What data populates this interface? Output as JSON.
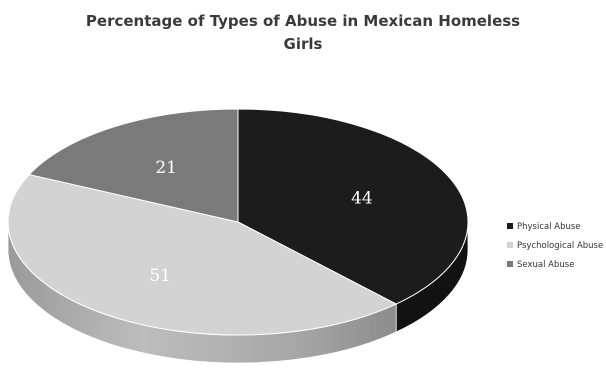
{
  "chart_data": {
    "type": "pie",
    "title_lines": [
      "Percentage of Types of Abuse in Mexican Homeless",
      "Girls"
    ],
    "categories": [
      "Physical Abuse",
      "Psychological Abuse",
      "Sexual Abuse"
    ],
    "values": [
      44,
      51,
      21
    ],
    "colors": [
      "#1c1c1c",
      "#d3d3d3",
      "#7a7a7a"
    ],
    "style": "3d-pie",
    "legend_position": "right"
  }
}
